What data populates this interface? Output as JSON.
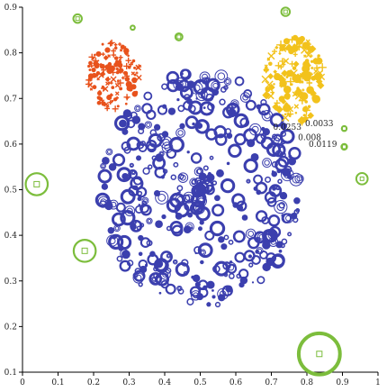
{
  "chart_data": {
    "type": "scatter",
    "title": "",
    "xlabel": "",
    "ylabel": "",
    "xlim": [
      0,
      1.0
    ],
    "ylim": [
      0.1,
      0.9
    ],
    "grid": false,
    "x_ticks": [
      "0",
      "0.1",
      "0.2",
      "0.3",
      "0.4",
      "0.5",
      "0.6",
      "0.7",
      "0.8",
      "0.9",
      "1"
    ],
    "y_ticks": [
      "0.1",
      "0.2",
      "0.3",
      "0.4",
      "0.5",
      "0.6",
      "0.7",
      "0.8",
      "0.9"
    ],
    "colors": {
      "blue": "#3b3fae",
      "red": "#e8521c",
      "yellow": "#f2c21c",
      "green": "#7cbd3c"
    },
    "annotations": [
      {
        "text": "0.0253",
        "x": 0.705,
        "y": 0.631
      },
      {
        "text": "0.0033",
        "x": 0.795,
        "y": 0.639
      },
      {
        "text": "0.008",
        "x": 0.775,
        "y": 0.609
      },
      {
        "text": "0.0119",
        "x": 0.805,
        "y": 0.594
      }
    ],
    "outliers": [
      {
        "x": 0.155,
        "y": 0.875,
        "r": 0.012
      },
      {
        "x": 0.31,
        "y": 0.855,
        "r": 0.006
      },
      {
        "x": 0.44,
        "y": 0.835,
        "r": 0.01
      },
      {
        "x": 0.74,
        "y": 0.89,
        "r": 0.012
      },
      {
        "x": 0.905,
        "y": 0.634,
        "r": 0.007
      },
      {
        "x": 0.905,
        "y": 0.594,
        "r": 0.008
      },
      {
        "x": 0.955,
        "y": 0.524,
        "r": 0.016
      },
      {
        "x": 0.04,
        "y": 0.512,
        "r": 0.031
      },
      {
        "x": 0.175,
        "y": 0.366,
        "r": 0.031
      },
      {
        "x": 0.835,
        "y": 0.14,
        "r": 0.058
      }
    ],
    "clusters": [
      {
        "name": "",
        "color": "blue",
        "cx": 0.5,
        "cy": 0.5,
        "rx": 0.28,
        "ry": 0.26,
        "n": 420,
        "seed": 11,
        "min_r": 0.004,
        "max_r": 0.018,
        "ring": true
      },
      {
        "name": "",
        "color": "red",
        "cx": 0.255,
        "cy": 0.75,
        "rx": 0.075,
        "ry": 0.075,
        "n": 140,
        "seed": 23,
        "min_r": 0.003,
        "max_r": 0.009,
        "ring": false
      },
      {
        "name": "",
        "color": "yellow",
        "cx": 0.765,
        "cy": 0.74,
        "rx": 0.085,
        "ry": 0.095,
        "n": 170,
        "seed": 37,
        "min_r": 0.003,
        "max_r": 0.012,
        "ring": false
      }
    ]
  }
}
